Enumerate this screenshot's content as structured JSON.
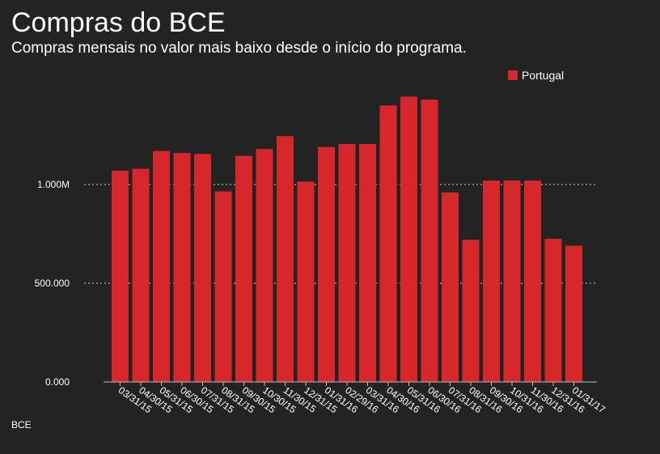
{
  "header": {
    "title": "Compras do BCE",
    "subtitle": "Compras mensais no valor mais baixo desde o início do programa."
  },
  "footer": {
    "source": "BCE"
  },
  "colors": {
    "background": "#232323",
    "bar": "#d6282b",
    "text": "#ffffff",
    "grid": "#cfcfcf"
  },
  "chart_data": {
    "type": "bar",
    "title": "Compras do BCE",
    "subtitle": "Compras mensais no valor mais baixo desde o início do programa.",
    "xlabel": "",
    "ylabel": "",
    "ylim": [
      0,
      1500000
    ],
    "yticks": [
      {
        "value": 0,
        "label": "0.000"
      },
      {
        "value": 500000,
        "label": "500.000"
      },
      {
        "value": 1000000,
        "label": "1.000M"
      }
    ],
    "grid": "horizontal dotted at 500.000 and 1.000M",
    "legend_position": "top-right",
    "categories": [
      "03/31/15",
      "04/30/15",
      "05/31/15",
      "06/30/15",
      "07/31/15",
      "08/31/15",
      "09/30/15",
      "10/30/15",
      "11/30/15",
      "12/31/15",
      "01/31/16",
      "02/29/16",
      "03/31/16",
      "04/30/16",
      "05/31/16",
      "06/30/16",
      "07/31/16",
      "08/31/16",
      "09/30/16",
      "10/31/16",
      "11/30/16",
      "12/31/16",
      "01/31/17"
    ],
    "series": [
      {
        "name": "Portugal",
        "color": "#d6282b",
        "values": [
          1070000,
          1080000,
          1170000,
          1160000,
          1155000,
          965000,
          1145000,
          1180000,
          1245000,
          1015000,
          1190000,
          1205000,
          1205000,
          1400000,
          1445000,
          1430000,
          960000,
          720000,
          1020000,
          1020000,
          1020000,
          725000,
          690000
        ]
      }
    ]
  }
}
